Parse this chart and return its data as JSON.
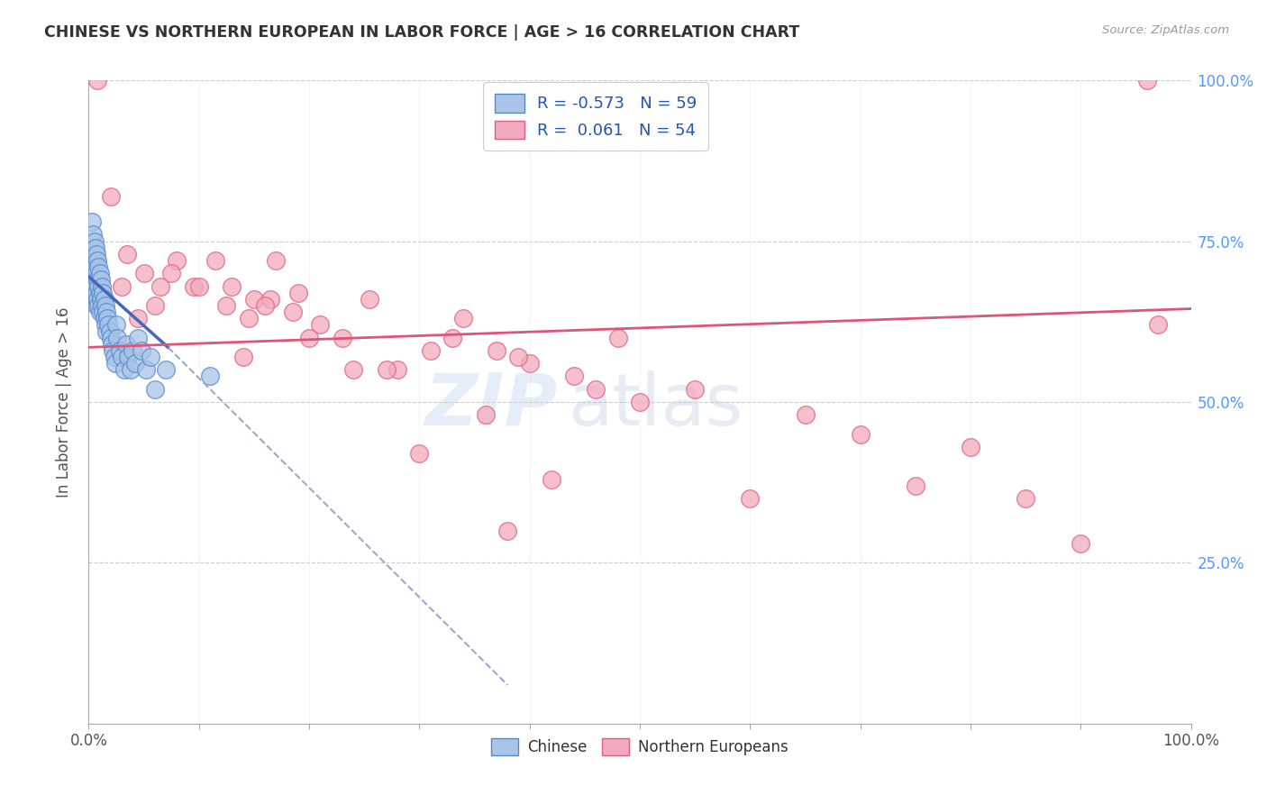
{
  "title": "CHINESE VS NORTHERN EUROPEAN IN LABOR FORCE | AGE > 16 CORRELATION CHART",
  "source": "Source: ZipAtlas.com",
  "ylabel": "In Labor Force | Age > 16",
  "watermark_part1": "ZIP",
  "watermark_part2": "atlas",
  "xlim": [
    0.0,
    1.0
  ],
  "ylim": [
    0.0,
    1.0
  ],
  "ytick_values": [
    0.0,
    0.25,
    0.5,
    0.75,
    1.0
  ],
  "right_tick_labels": [
    "",
    "25.0%",
    "50.0%",
    "75.0%",
    "100.0%"
  ],
  "legend_blue_label": "R = -0.573   N = 59",
  "legend_pink_label": "R =  0.061   N = 54",
  "blue_R": -0.573,
  "pink_R": 0.061,
  "blue_color": "#a8c4e8",
  "pink_color": "#f2aabe",
  "blue_edge_color": "#5588cc",
  "pink_edge_color": "#e06080",
  "blue_line_color": "#4466bb",
  "pink_line_color": "#dd5577",
  "dashed_line_color": "#99aacc",
  "grid_color": "#cccccc",
  "background_color": "#ffffff",
  "title_color": "#333333",
  "source_color": "#999999",
  "axis_label_color": "#555555",
  "right_tick_color": "#5599ff",
  "blue_scatter_x": [
    0.003,
    0.004,
    0.004,
    0.005,
    0.005,
    0.005,
    0.006,
    0.006,
    0.006,
    0.007,
    0.007,
    0.007,
    0.007,
    0.008,
    0.008,
    0.008,
    0.009,
    0.009,
    0.009,
    0.01,
    0.01,
    0.01,
    0.011,
    0.011,
    0.012,
    0.012,
    0.013,
    0.013,
    0.014,
    0.014,
    0.015,
    0.015,
    0.016,
    0.016,
    0.017,
    0.018,
    0.019,
    0.02,
    0.021,
    0.022,
    0.023,
    0.024,
    0.025,
    0.026,
    0.028,
    0.03,
    0.032,
    0.034,
    0.036,
    0.038,
    0.04,
    0.042,
    0.045,
    0.048,
    0.052,
    0.056,
    0.06,
    0.07,
    0.11
  ],
  "blue_scatter_y": [
    0.78,
    0.76,
    0.73,
    0.75,
    0.72,
    0.7,
    0.74,
    0.71,
    0.68,
    0.73,
    0.7,
    0.67,
    0.65,
    0.72,
    0.69,
    0.66,
    0.71,
    0.68,
    0.65,
    0.7,
    0.67,
    0.64,
    0.69,
    0.66,
    0.68,
    0.65,
    0.67,
    0.64,
    0.66,
    0.63,
    0.65,
    0.62,
    0.64,
    0.61,
    0.63,
    0.62,
    0.61,
    0.6,
    0.59,
    0.58,
    0.57,
    0.56,
    0.62,
    0.6,
    0.58,
    0.57,
    0.55,
    0.59,
    0.57,
    0.55,
    0.58,
    0.56,
    0.6,
    0.58,
    0.55,
    0.57,
    0.52,
    0.55,
    0.54
  ],
  "pink_scatter_x": [
    0.008,
    0.02,
    0.035,
    0.05,
    0.065,
    0.08,
    0.095,
    0.115,
    0.13,
    0.15,
    0.17,
    0.19,
    0.06,
    0.075,
    0.1,
    0.125,
    0.145,
    0.165,
    0.185,
    0.21,
    0.23,
    0.255,
    0.28,
    0.31,
    0.34,
    0.37,
    0.4,
    0.44,
    0.48,
    0.03,
    0.045,
    0.14,
    0.16,
    0.2,
    0.24,
    0.27,
    0.3,
    0.33,
    0.36,
    0.39,
    0.42,
    0.46,
    0.5,
    0.55,
    0.6,
    0.65,
    0.7,
    0.75,
    0.8,
    0.85,
    0.9,
    0.96,
    0.38,
    0.97
  ],
  "pink_scatter_y": [
    1.0,
    0.82,
    0.73,
    0.7,
    0.68,
    0.72,
    0.68,
    0.72,
    0.68,
    0.66,
    0.72,
    0.67,
    0.65,
    0.7,
    0.68,
    0.65,
    0.63,
    0.66,
    0.64,
    0.62,
    0.6,
    0.66,
    0.55,
    0.58,
    0.63,
    0.58,
    0.56,
    0.54,
    0.6,
    0.68,
    0.63,
    0.57,
    0.65,
    0.6,
    0.55,
    0.55,
    0.42,
    0.6,
    0.48,
    0.57,
    0.38,
    0.52,
    0.5,
    0.52,
    0.35,
    0.48,
    0.45,
    0.37,
    0.43,
    0.35,
    0.28,
    1.0,
    0.3,
    0.62
  ],
  "blue_line_x_start": 0.0,
  "blue_line_x_solid_end": 0.072,
  "blue_line_x_dashed_end": 0.38,
  "pink_line_x_start": 0.0,
  "pink_line_x_end": 1.0,
  "blue_line_y_at_x0": 0.695,
  "blue_line_y_at_xsolid_end": 0.585,
  "blue_line_y_at_xdashed_end": 0.06,
  "pink_line_y_at_x0": 0.585,
  "pink_line_y_at_xend": 0.645
}
